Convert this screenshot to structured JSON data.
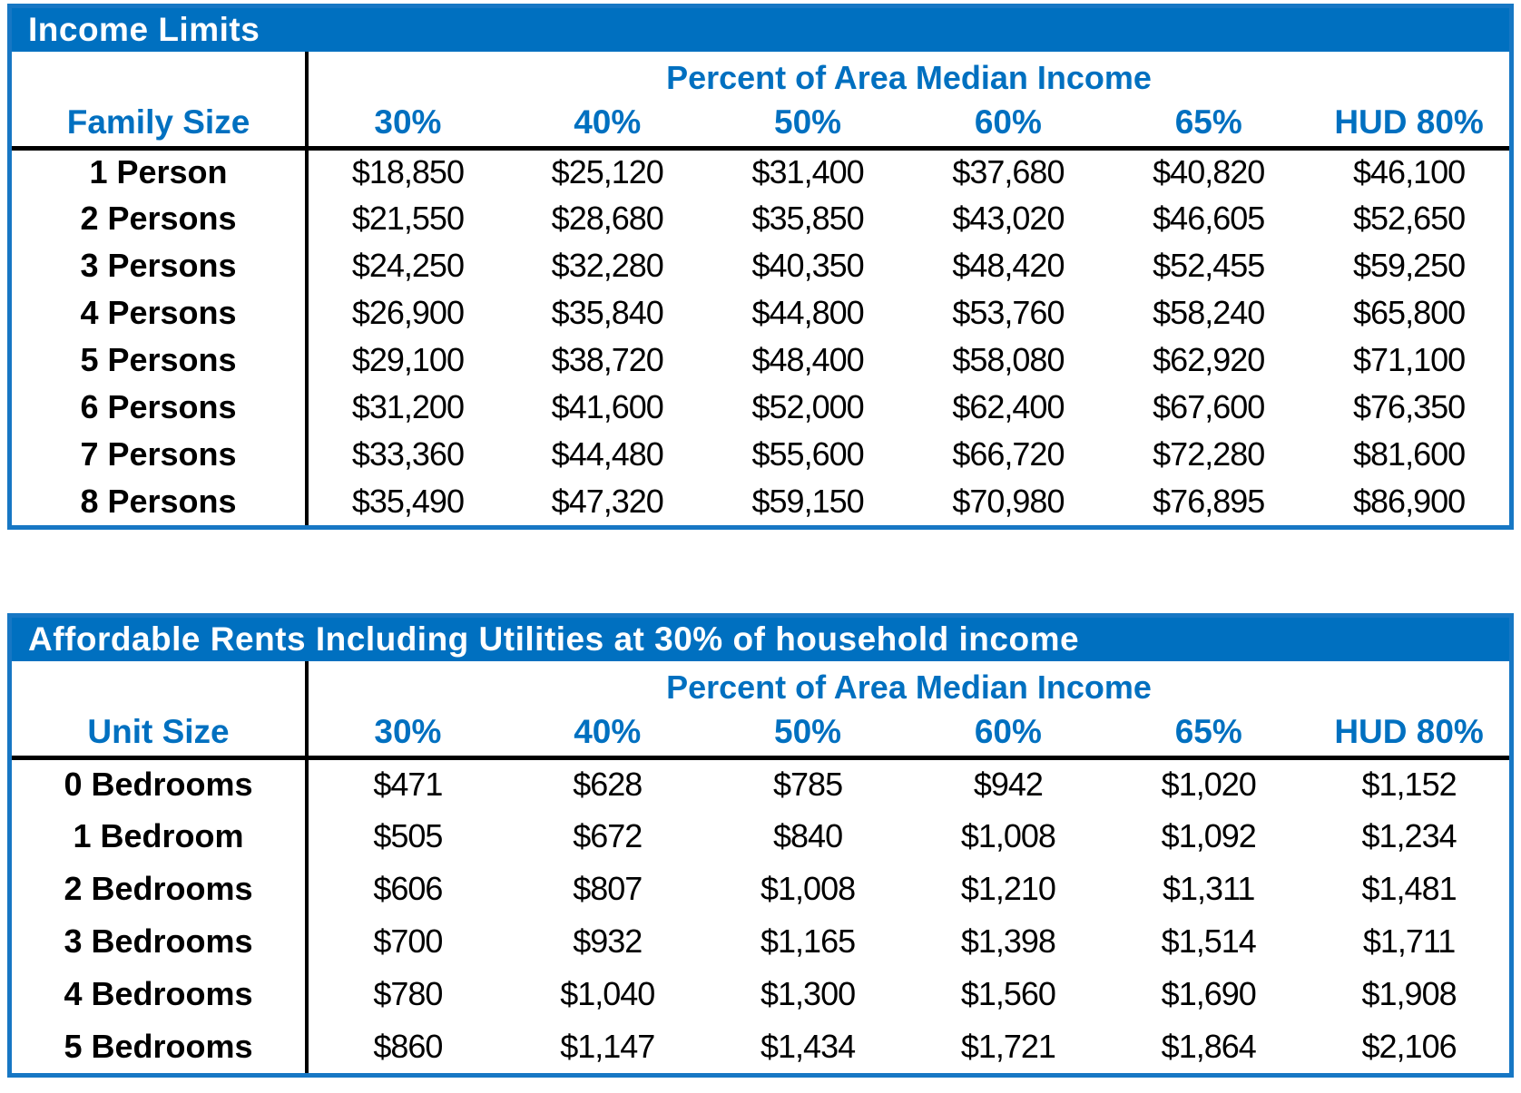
{
  "accent_color": "#0070C0",
  "border_color": "#1777C4",
  "income_table": {
    "title": "Income Limits",
    "group_header": "Percent of Area Median Income",
    "row_header": "Family Size",
    "columns": [
      "30%",
      "40%",
      "50%",
      "60%",
      "65%",
      "HUD 80%"
    ],
    "rows": [
      [
        "1 Person",
        "$18,850",
        "$25,120",
        "$31,400",
        "$37,680",
        "$40,820",
        "$46,100"
      ],
      [
        "2 Persons",
        "$21,550",
        "$28,680",
        "$35,850",
        "$43,020",
        "$46,605",
        "$52,650"
      ],
      [
        "3 Persons",
        "$24,250",
        "$32,280",
        "$40,350",
        "$48,420",
        "$52,455",
        "$59,250"
      ],
      [
        "4 Persons",
        "$26,900",
        "$35,840",
        "$44,800",
        "$53,760",
        "$58,240",
        "$65,800"
      ],
      [
        "5 Persons",
        "$29,100",
        "$38,720",
        "$48,400",
        "$58,080",
        "$62,920",
        "$71,100"
      ],
      [
        "6 Persons",
        "$31,200",
        "$41,600",
        "$52,000",
        "$62,400",
        "$67,600",
        "$76,350"
      ],
      [
        "7 Persons",
        "$33,360",
        "$44,480",
        "$55,600",
        "$66,720",
        "$72,280",
        "$81,600"
      ],
      [
        "8 Persons",
        "$35,490",
        "$47,320",
        "$59,150",
        "$70,980",
        "$76,895",
        "$86,900"
      ]
    ]
  },
  "rents_table": {
    "title": "Affordable Rents Including Utilities at 30% of household income",
    "group_header": "Percent of Area Median Income",
    "row_header": "Unit Size",
    "columns": [
      "30%",
      "40%",
      "50%",
      "60%",
      "65%",
      "HUD 80%"
    ],
    "rows": [
      [
        "0 Bedrooms",
        "$471",
        "$628",
        "$785",
        "$942",
        "$1,020",
        "$1,152"
      ],
      [
        "1 Bedroom",
        "$505",
        "$672",
        "$840",
        "$1,008",
        "$1,092",
        "$1,234"
      ],
      [
        "2 Bedrooms",
        "$606",
        "$807",
        "$1,008",
        "$1,210",
        "$1,311",
        "$1,481"
      ],
      [
        "3 Bedrooms",
        "$700",
        "$932",
        "$1,165",
        "$1,398",
        "$1,514",
        "$1,711"
      ],
      [
        "4 Bedrooms",
        "$780",
        "$1,040",
        "$1,300",
        "$1,560",
        "$1,690",
        "$1,908"
      ],
      [
        "5 Bedrooms",
        "$860",
        "$1,147",
        "$1,434",
        "$1,721",
        "$1,864",
        "$2,106"
      ]
    ]
  }
}
